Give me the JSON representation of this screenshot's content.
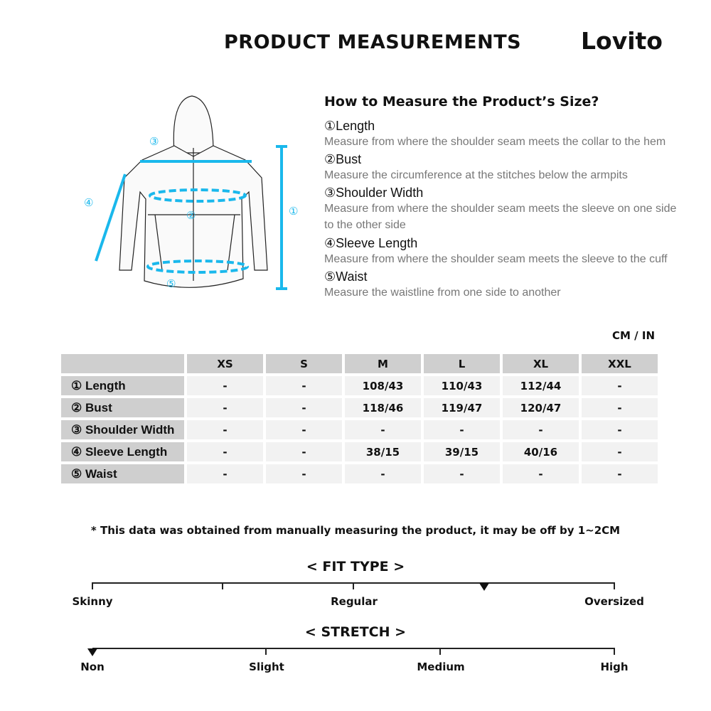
{
  "header": {
    "title": "PRODUCT MEASUREMENTS",
    "brand": "Lovito"
  },
  "guide": {
    "title": "How to Measure the Product’s Size?",
    "items": [
      {
        "label": "①Length",
        "desc": "Measure from where the shoulder seam meets the collar to the hem"
      },
      {
        "label": "②Bust",
        "desc": "Measure the circumference at the stitches below the armpits"
      },
      {
        "label": "③Shoulder Width",
        "desc": "Measure from where the shoulder seam meets the sleeve on one side to the other side"
      },
      {
        "label": "④Sleeve Length",
        "desc": "Measure from where the shoulder seam meets the sleeve to the cuff"
      },
      {
        "label": "⑤Waist",
        "desc": "Measure the waistline from one side to another"
      }
    ]
  },
  "diagram": {
    "markers": [
      "①",
      "②",
      "③",
      "④",
      "⑤"
    ],
    "accent": "#1ab8ec"
  },
  "table": {
    "unit": "CM / IN",
    "sizes": [
      "XS",
      "S",
      "M",
      "L",
      "XL",
      "XXL"
    ],
    "rows": [
      {
        "label": "① Length",
        "values": [
          "-",
          "-",
          "108/43",
          "110/43",
          "112/44",
          "-"
        ]
      },
      {
        "label": "② Bust",
        "values": [
          "-",
          "-",
          "118/46",
          "119/47",
          "120/47",
          "-"
        ]
      },
      {
        "label": "③ Shoulder Width",
        "values": [
          "-",
          "-",
          "-",
          "-",
          "-",
          "-"
        ]
      },
      {
        "label": "④ Sleeve Length",
        "values": [
          "-",
          "-",
          "38/15",
          "39/15",
          "40/16",
          "-"
        ]
      },
      {
        "label": "⑤ Waist",
        "values": [
          "-",
          "-",
          "-",
          "-",
          "-",
          "-"
        ]
      }
    ]
  },
  "note": "* This data was obtained from manually measuring the product, it may be off by 1~2CM",
  "fit": {
    "title": "< FIT TYPE >",
    "labels": [
      "Skinny",
      "Regular",
      "Oversized"
    ],
    "value_fraction": 0.75
  },
  "stretch": {
    "title": "< STRETCH >",
    "labels": [
      "Non",
      "Slight",
      "Medium",
      "High"
    ],
    "value_fraction": 0
  }
}
